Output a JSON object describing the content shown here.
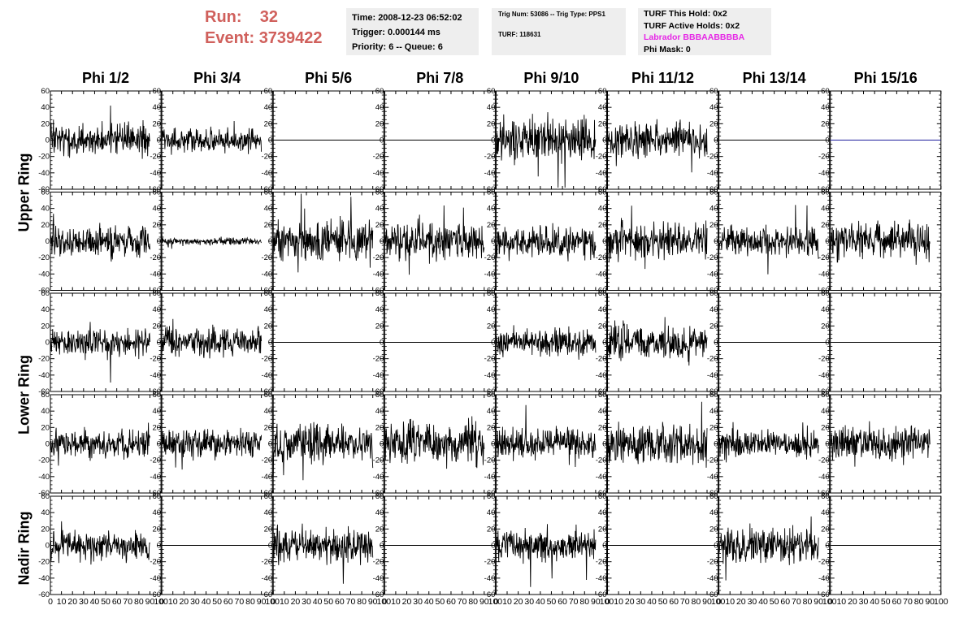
{
  "header": {
    "run_label": "Run:",
    "run_value": "32",
    "event_label": "Event:",
    "event_value": "3739422",
    "time": "Time: 2008-12-23 06:52:02",
    "trigger": "Trigger: 0.000144 ms",
    "priority": "Priority: 6 -- Queue: 6",
    "trig_num": "Trig Num: 53086 -- Trig Type: PPS1",
    "turf": "TURF: 118631",
    "turf_this_hold": "TURF This Hold: 0x2",
    "turf_active_holds": "TURF Active Holds: 0x2",
    "labrador": "Labrador BBBAABBBBA",
    "phi_mask": "Phi Mask: 0",
    "highlight_color": "#e627e6",
    "title_color": "#d0605c"
  },
  "columns": [
    "Phi 1/2",
    "Phi 3/4",
    "Phi 5/6",
    "Phi 7/8",
    "Phi 9/10",
    "Phi 11/12",
    "Phi 13/14",
    "Phi 15/16"
  ],
  "ring_labels": [
    "Upper Ring",
    "Lower Ring",
    "Nadir Ring"
  ],
  "chart_data": {
    "type": "line",
    "description_rows": 5,
    "description_cols": 8,
    "xlim": [
      0,
      100
    ],
    "ylim": [
      -60,
      60
    ],
    "x_ticks": [
      "0",
      "10",
      "20",
      "30",
      "40",
      "50",
      "60",
      "70",
      "80",
      "90",
      "100"
    ],
    "y_ticks": [
      "-60",
      "-40",
      "-20",
      "0",
      "20",
      "40",
      "60"
    ],
    "line_color": "#000000",
    "flat_line_blue_color": "#1d1d9c",
    "panels": [
      [
        {
          "a": 13,
          "s": 11
        },
        {
          "a": 10,
          "s": 12
        },
        {
          "a": 0,
          "s": 0
        },
        {
          "a": 0,
          "s": 0
        },
        {
          "a": 18,
          "s": 13
        },
        {
          "a": 14,
          "s": 14
        },
        {
          "a": 0,
          "s": 0
        },
        {
          "a": 0,
          "s": 0,
          "blue": true
        }
      ],
      [
        {
          "a": 14,
          "s": 21
        },
        {
          "a": 3,
          "s": 22
        },
        {
          "a": 16,
          "s": 23
        },
        {
          "a": 15,
          "s": 24
        },
        {
          "a": 13,
          "s": 25
        },
        {
          "a": 15,
          "s": 26
        },
        {
          "a": 13,
          "s": 27
        },
        {
          "a": 15,
          "s": 28
        }
      ],
      [
        {
          "a": 12,
          "s": 31
        },
        {
          "a": 12,
          "s": 32
        },
        {
          "a": 0,
          "s": 0
        },
        {
          "a": 0,
          "s": 0
        },
        {
          "a": 12,
          "s": 35
        },
        {
          "a": 14,
          "s": 36
        },
        {
          "a": 0,
          "s": 0
        },
        {
          "a": 0,
          "s": 0
        }
      ],
      [
        {
          "a": 12,
          "s": 41
        },
        {
          "a": 12,
          "s": 42
        },
        {
          "a": 16,
          "s": 43
        },
        {
          "a": 18,
          "s": 44
        },
        {
          "a": 13,
          "s": 45
        },
        {
          "a": 16,
          "s": 46
        },
        {
          "a": 12,
          "s": 47
        },
        {
          "a": 14,
          "s": 48
        }
      ],
      [
        {
          "a": 12,
          "s": 51
        },
        {
          "a": 0,
          "s": 0
        },
        {
          "a": 14,
          "s": 53
        },
        {
          "a": 0,
          "s": 0
        },
        {
          "a": 14,
          "s": 55
        },
        {
          "a": 0,
          "s": 0
        },
        {
          "a": 15,
          "s": 57
        },
        {
          "a": 0,
          "s": 0
        }
      ]
    ]
  }
}
